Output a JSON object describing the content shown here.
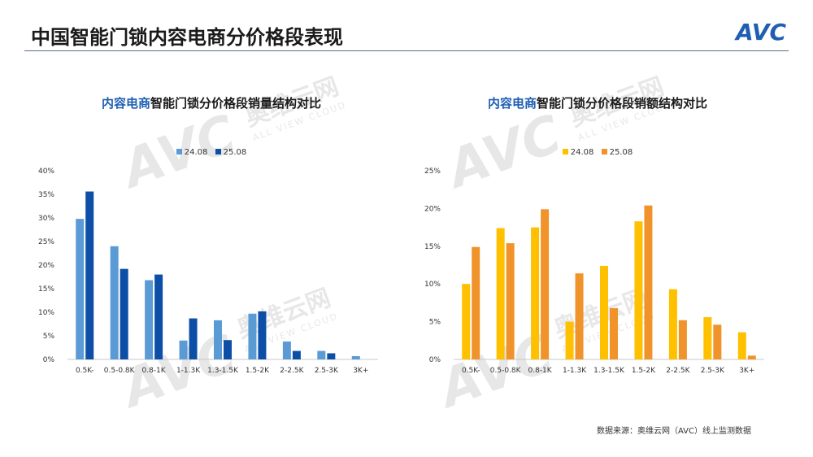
{
  "header": {
    "title": "中国智能门锁内容电商分价格段表现",
    "logo_text": "AVC"
  },
  "watermark": {
    "brand": "AVC",
    "cn": "奥维云网",
    "en": "ALL VIEW CLOUD"
  },
  "colors": {
    "left_24": "#5b9bd5",
    "left_25": "#0d4fa6",
    "right_24": "#ffc000",
    "right_25": "#f0932b",
    "highlight": "#1f5fb3",
    "logo": "#1f5fb3"
  },
  "charts": [
    {
      "title_highlight": "内容电商",
      "title_rest": "智能门锁分价格段销量结构对比"
    },
    {
      "title_highlight": "内容电商",
      "title_rest": "智能门锁分价格段销额结构对比"
    }
  ],
  "chart_data": [
    {
      "type": "bar",
      "title": "内容电商智能门锁分价格段销量结构对比",
      "categories": [
        "0.5K-",
        "0.5-0.8K",
        "0.8-1K",
        "1-1.3K",
        "1.3-1.5K",
        "1.5-2K",
        "2-2.5K",
        "2.5-3K",
        "3K+"
      ],
      "series": [
        {
          "name": "24.08",
          "values": [
            29.8,
            24.0,
            16.8,
            4.0,
            8.3,
            9.7,
            3.8,
            1.8,
            0.7
          ]
        },
        {
          "name": "25.08",
          "values": [
            35.6,
            19.2,
            18.0,
            8.7,
            4.1,
            10.2,
            1.8,
            1.3,
            0.0
          ]
        }
      ],
      "ylim": [
        0,
        40
      ],
      "yticks": [
        "0%",
        "5%",
        "10%",
        "15%",
        "20%",
        "25%",
        "30%",
        "35%",
        "40%"
      ],
      "legend": "top-center",
      "grid": false
    },
    {
      "type": "bar",
      "title": "内容电商智能门锁分价格段销额结构对比",
      "categories": [
        "0.5K-",
        "0.5-0.8K",
        "0.8-1K",
        "1-1.3K",
        "1.3-1.5K",
        "1.5-2K",
        "2-2.5K",
        "2.5-3K",
        "3K+"
      ],
      "series": [
        {
          "name": "24.08",
          "values": [
            10.0,
            17.4,
            17.5,
            5.0,
            12.4,
            18.3,
            9.3,
            5.6,
            3.6
          ]
        },
        {
          "name": "25.08",
          "values": [
            14.9,
            15.4,
            19.9,
            11.4,
            6.8,
            20.4,
            5.2,
            4.6,
            0.5
          ]
        }
      ],
      "ylim": [
        0,
        25
      ],
      "yticks": [
        "0%",
        "5%",
        "10%",
        "15%",
        "20%",
        "25%"
      ],
      "legend": "top-center",
      "grid": false
    }
  ],
  "footer": {
    "source": "数据来源：奥维云网（AVC）线上监测数据"
  }
}
